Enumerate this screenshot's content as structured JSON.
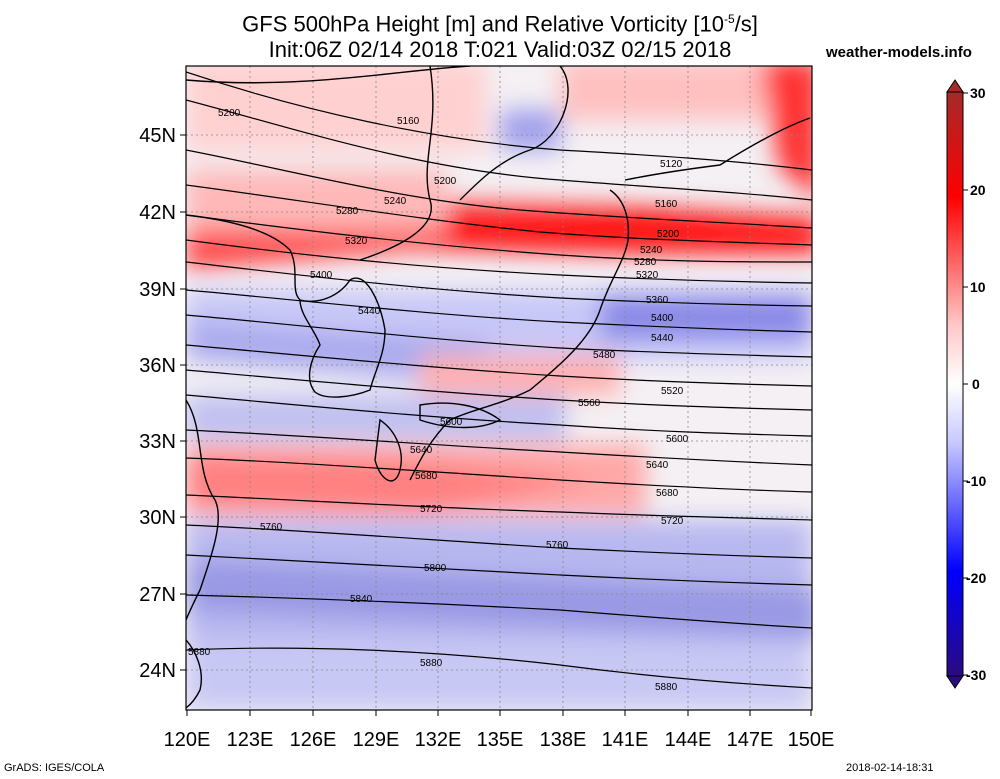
{
  "header": {
    "title_prefix": "GFS 500hPa Height [m] and Relative Vorticity [10",
    "title_exp": "-5",
    "title_suffix": "/s]",
    "subtitle": "Init:06Z 02/14 2018 T:021 Valid:03Z 02/15 2018",
    "brand": "weather-models.info"
  },
  "map": {
    "lat_labels": [
      "45N",
      "42N",
      "39N",
      "36N",
      "33N",
      "30N",
      "27N",
      "24N"
    ],
    "lon_labels": [
      "120E",
      "123E",
      "126E",
      "129E",
      "132E",
      "135E",
      "138E",
      "141E",
      "144E",
      "147E",
      "150E"
    ],
    "contour_labels": [
      "5120",
      "5160",
      "5200",
      "5240",
      "5280",
      "5320",
      "5360",
      "5400",
      "5440",
      "5480",
      "5520",
      "5560",
      "5600",
      "5640",
      "5680",
      "5720",
      "5760",
      "5800",
      "5840",
      "5880"
    ]
  },
  "colorbar": {
    "ticks": [
      "30",
      "20",
      "10",
      "0",
      "-10",
      "-20",
      "-30"
    ],
    "colors": {
      "max": "#a52a2a",
      "pos_high": "#ff0000",
      "pos_low": "#ffc8c8",
      "zero": "#ffffff",
      "neg_low": "#c8c8ff",
      "neg_high": "#0000ff",
      "min": "#2a0a80"
    }
  },
  "footer": {
    "left": "GrADS: IGES/COLA",
    "right": "2018-02-14-18:31"
  }
}
